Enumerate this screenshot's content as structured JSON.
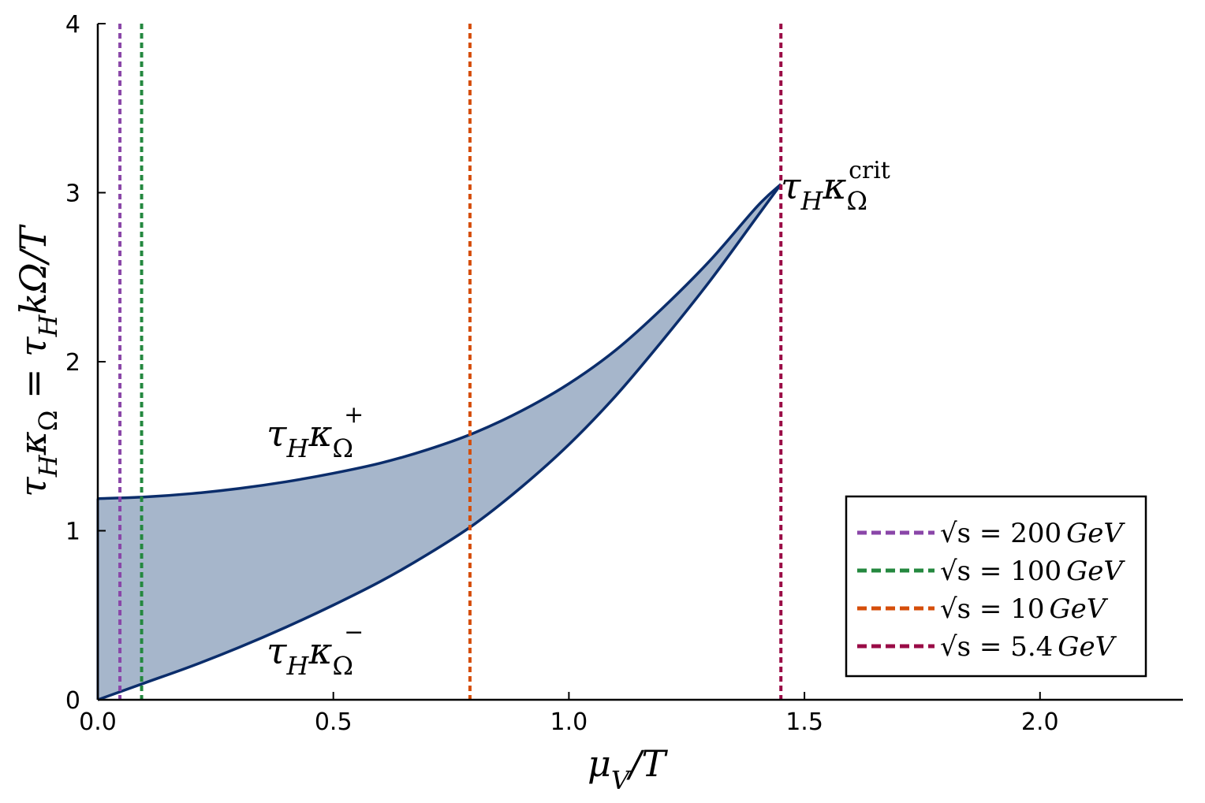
{
  "chart_data": {
    "type": "area",
    "title": "",
    "xlabel": "μ_V/T",
    "ylabel": "τ_H κ_Ω = τ_H kΩ/T",
    "xlim": [
      0,
      2.3
    ],
    "ylim": [
      0,
      4
    ],
    "x_ticks": [
      0.0,
      0.5,
      1.0,
      1.5,
      2.0
    ],
    "x_tick_labels": [
      "0.0",
      "0.5",
      "1.0",
      "1.5",
      "2.0"
    ],
    "y_ticks": [
      0,
      1,
      2,
      3,
      4
    ],
    "y_tick_labels": [
      "0",
      "1",
      "2",
      "3",
      "4"
    ],
    "grid": false,
    "fill_color": "#a6b6cb",
    "line_color": "#0b2d6b",
    "band": {
      "upper": {
        "name": "τ_H κ_Ω^+",
        "x": [
          0,
          0.1,
          0.2,
          0.3,
          0.4,
          0.5,
          0.6,
          0.7,
          0.8,
          0.9,
          1.0,
          1.1,
          1.2,
          1.3,
          1.4,
          1.45
        ],
        "y": [
          1.19,
          1.2,
          1.22,
          1.25,
          1.29,
          1.34,
          1.4,
          1.48,
          1.58,
          1.71,
          1.87,
          2.07,
          2.32,
          2.6,
          2.92,
          3.05
        ]
      },
      "lower": {
        "name": "τ_H κ_Ω^-",
        "x": [
          0,
          0.1,
          0.2,
          0.3,
          0.4,
          0.5,
          0.6,
          0.7,
          0.8,
          0.9,
          1.0,
          1.1,
          1.2,
          1.3,
          1.4,
          1.45
        ],
        "y": [
          0.0,
          0.1,
          0.2,
          0.31,
          0.43,
          0.56,
          0.7,
          0.86,
          1.04,
          1.26,
          1.51,
          1.8,
          2.13,
          2.48,
          2.86,
          3.05
        ]
      }
    },
    "vlines": [
      {
        "x": 0.047,
        "color": "#8a46a8",
        "label_prefix": "√s = ",
        "label_value": "200",
        "label_unit": "GeV"
      },
      {
        "x": 0.093,
        "color": "#24883f",
        "label_prefix": "√s = ",
        "label_value": "100",
        "label_unit": "GeV"
      },
      {
        "x": 0.79,
        "color": "#d54e0a",
        "label_prefix": "√s = ",
        "label_value": "10",
        "label_unit": "GeV"
      },
      {
        "x": 1.45,
        "color": "#9a0b46",
        "label_prefix": "√s = ",
        "label_value": "5.4",
        "label_unit": "GeV"
      }
    ],
    "annotations": {
      "upper_label": "τ_H κ_Ω^+",
      "lower_label": "τ_H κ_Ω^-",
      "crit_label": "τ_H κ_Ω^crit"
    },
    "legend_placement": "bottom-right"
  },
  "text": {
    "xlabel_main": "μ",
    "xlabel_sub": "V",
    "xlabel_rest": "/T",
    "ylabel_a": "τ",
    "ylabel_a_sub": "H",
    "ylabel_b": "κ",
    "ylabel_b_sub": "Ω",
    "ylabel_eq": " = ",
    "ylabel_c": "τ",
    "ylabel_c_sub": "H",
    "ylabel_rest": "kΩ/T",
    "ann_tau": "τ",
    "ann_H": "H",
    "ann_kappa": "κ",
    "ann_Omega": "Ω",
    "ann_plus": "+",
    "ann_minus": "−",
    "ann_crit": "crit"
  }
}
